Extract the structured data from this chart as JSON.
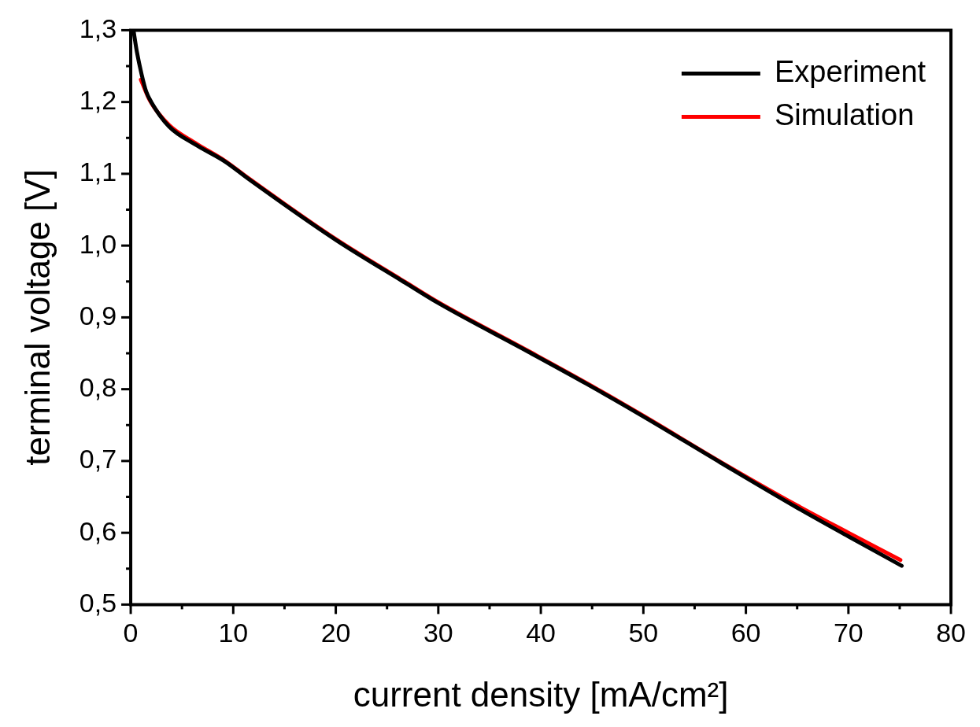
{
  "chart_data": {
    "type": "line",
    "xlabel": "current density [mA/cm²]",
    "ylabel": "terminal voltage [V]",
    "xlim": [
      0,
      80
    ],
    "ylim": [
      0.5,
      1.3
    ],
    "xticks": [
      0,
      {
        "value": 5,
        "label": null
      },
      10,
      {
        "value": 15,
        "label": null
      },
      20,
      {
        "value": 25,
        "label": null
      },
      30,
      {
        "value": 35,
        "label": null
      },
      40,
      {
        "value": 45,
        "label": null
      },
      50,
      {
        "value": 55,
        "label": null
      },
      60,
      {
        "value": 65,
        "label": null
      },
      70,
      {
        "value": 75,
        "label": null
      },
      80
    ],
    "yticks": [
      {
        "value": 0.5,
        "label": "0,5"
      },
      {
        "value": 0.55,
        "label": null
      },
      {
        "value": 0.6,
        "label": "0,6"
      },
      {
        "value": 0.65,
        "label": null
      },
      {
        "value": 0.7,
        "label": "0,7"
      },
      {
        "value": 0.75,
        "label": null
      },
      {
        "value": 0.8,
        "label": "0,8"
      },
      {
        "value": 0.85,
        "label": null
      },
      {
        "value": 0.9,
        "label": "0,9"
      },
      {
        "value": 0.95,
        "label": null
      },
      {
        "value": 1.0,
        "label": "1,0"
      },
      {
        "value": 1.05,
        "label": null
      },
      {
        "value": 1.1,
        "label": "1,1"
      },
      {
        "value": 1.15,
        "label": null
      },
      {
        "value": 1.2,
        "label": "1,2"
      },
      {
        "value": 1.25,
        "label": null
      },
      {
        "value": 1.3,
        "label": "1,3"
      }
    ],
    "grid": false,
    "legend": "top right",
    "marker": "none",
    "line_style": "solid",
    "series": [
      {
        "name": "Experiment",
        "color": "#000000",
        "x": [
          0.27,
          0.6,
          1.07,
          1.5,
          2,
          3.73,
          6.4,
          9.2,
          11.47,
          20,
          26.8,
          30,
          38.8,
          44.4,
          50,
          57.5,
          65,
          70,
          75.2
        ],
        "values": [
          1.3,
          1.27,
          1.238,
          1.215,
          1.2,
          1.166,
          1.14,
          1.117,
          1.093,
          1.008,
          0.948,
          0.92,
          0.852,
          0.808,
          0.762,
          0.698,
          0.635,
          0.595,
          0.554
        ]
      },
      {
        "name": "Simulation",
        "color": "#ff0000",
        "x": [
          0.99,
          1.87,
          3.73,
          6.4,
          9.2,
          11.47,
          20,
          26.8,
          30,
          38.8,
          44.4,
          50,
          57.5,
          65,
          70,
          75.07
        ],
        "values": [
          1.231,
          1.202,
          1.168,
          1.142,
          1.118,
          1.094,
          1.009,
          0.949,
          0.921,
          0.853,
          0.809,
          0.763,
          0.699,
          0.638,
          0.6,
          0.562
        ]
      }
    ]
  }
}
